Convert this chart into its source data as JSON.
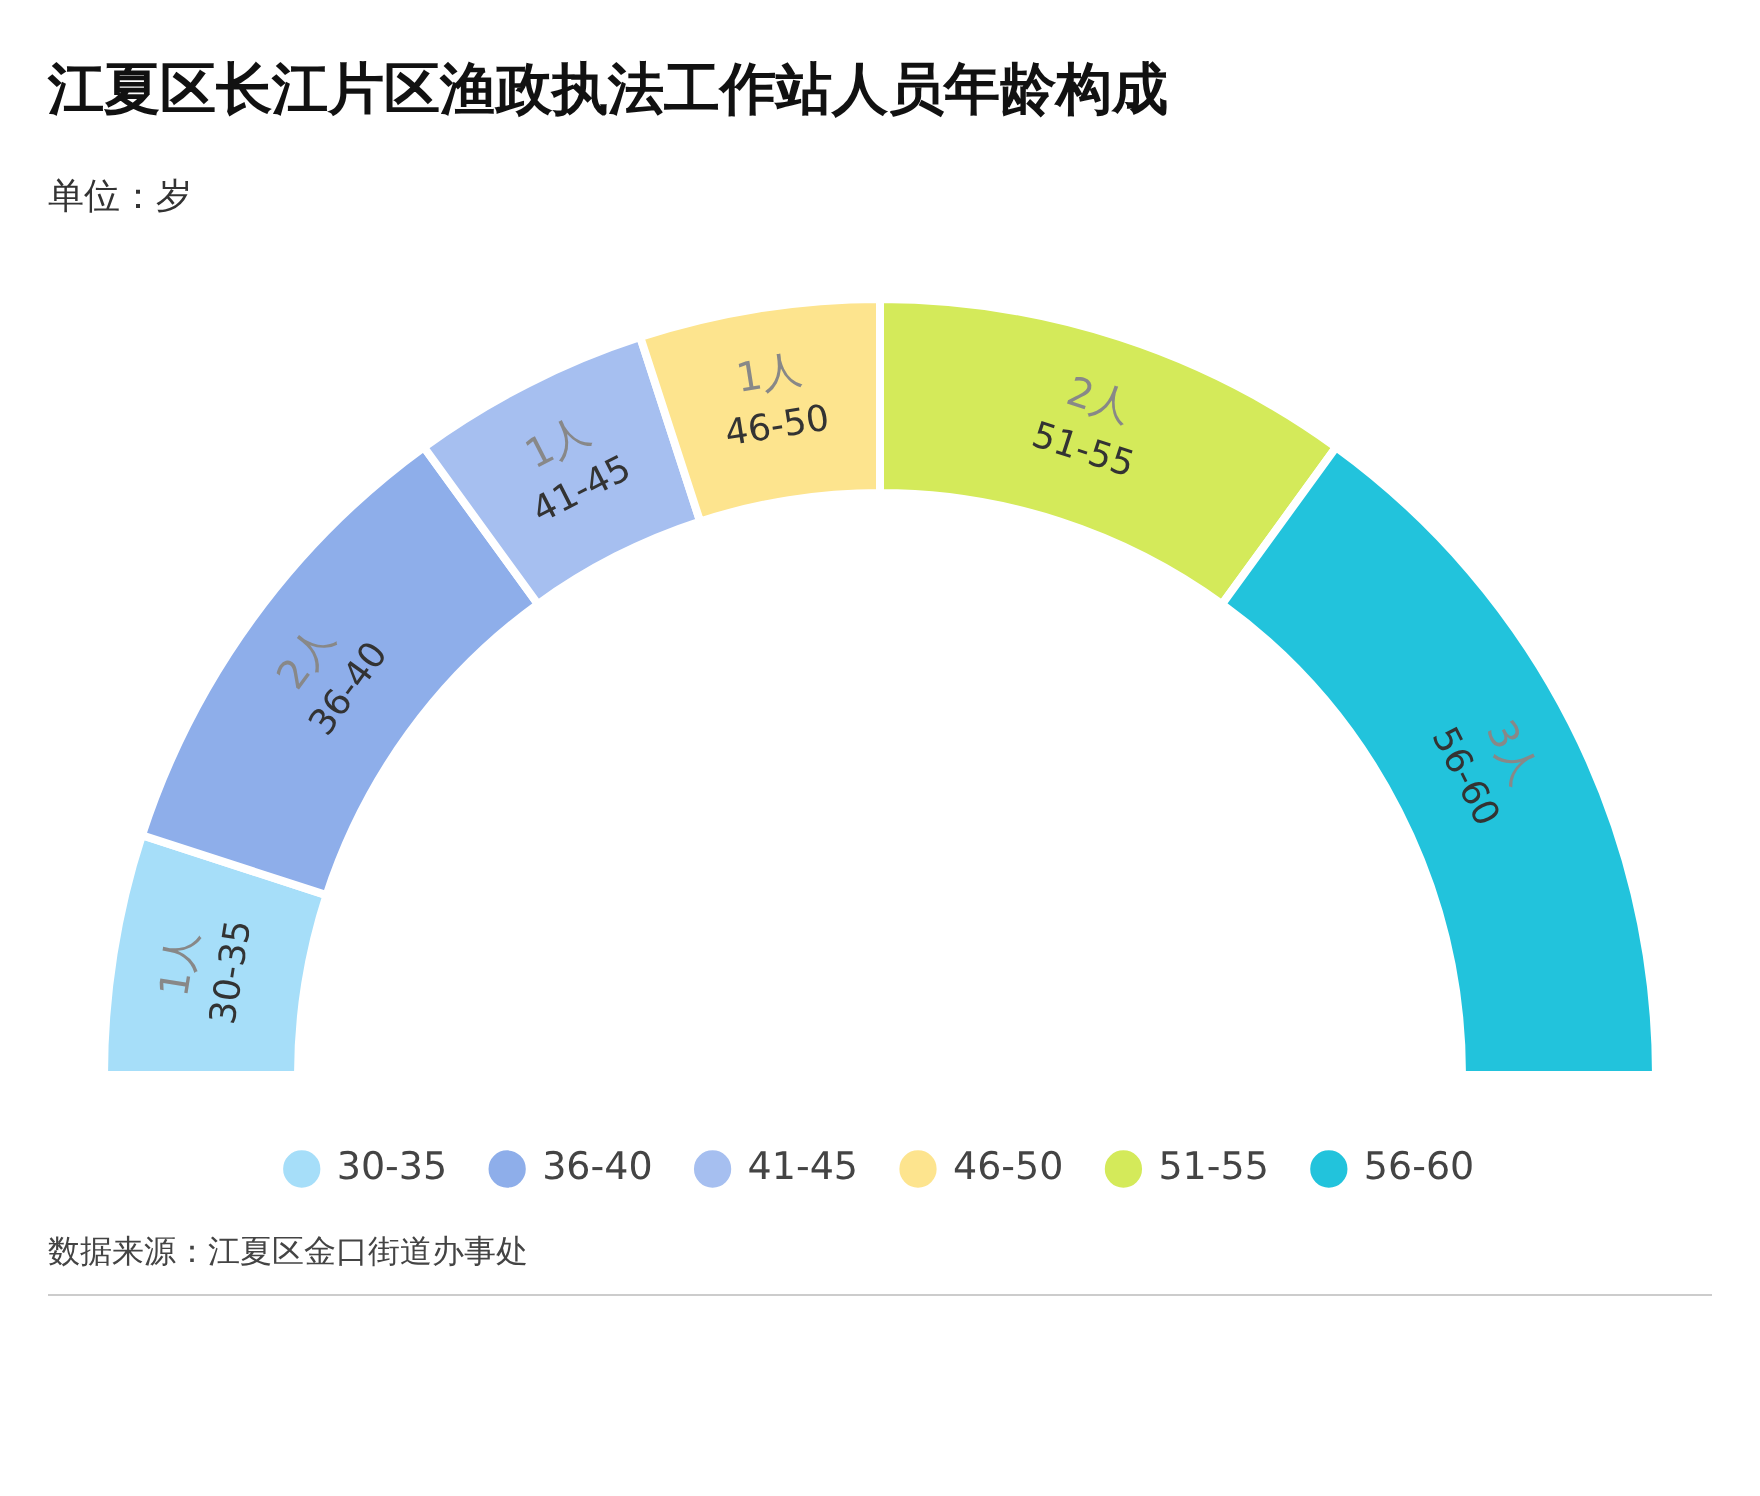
{
  "chart_data": {
    "type": "donut",
    "title": "江夏区长江片区渔政执法工作站人员年龄构成",
    "subtitle": "单位：岁",
    "categories": [
      "30-35",
      "36-40",
      "41-45",
      "46-50",
      "51-55",
      "56-60"
    ],
    "values": [
      1,
      2,
      1,
      1,
      2,
      3
    ],
    "value_labels": [
      "1人",
      "2人",
      "1人",
      "1人",
      "2人",
      "3人"
    ],
    "colors": [
      "#a6def9",
      "#8eaeea",
      "#a6bff0",
      "#fde48e",
      "#d4ea5a",
      "#22c3dc"
    ],
    "legend": "bottom",
    "annotations": [
      "数据来源：江夏区金口街道办事处"
    ]
  }
}
